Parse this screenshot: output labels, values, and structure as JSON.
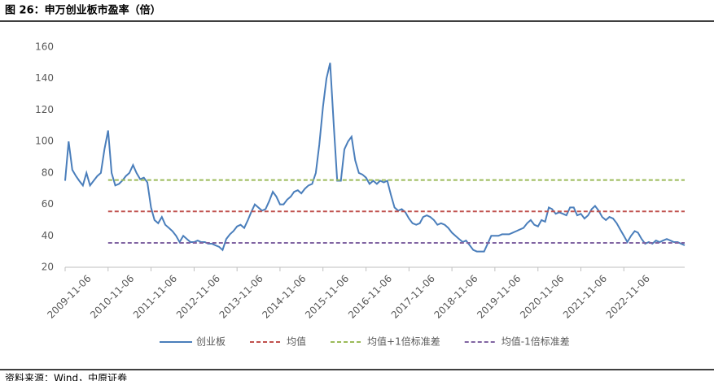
{
  "chart_data": {
    "type": "line",
    "title": "图 26：申万创业板市盈率（倍）",
    "source": "资料来源：Wind，中原证券",
    "xlim": [
      "2009-11-06",
      "2024-04-06"
    ],
    "xticks": [
      "2009-11-06",
      "2010-11-06",
      "2011-11-06",
      "2012-11-06",
      "2013-11-06",
      "2014-11-06",
      "2015-11-06",
      "2016-11-06",
      "2017-11-06",
      "2018-11-06",
      "2019-11-06",
      "2020-11-06",
      "2021-11-06",
      "2022-11-06"
    ],
    "ylim": [
      20,
      160
    ],
    "yticks": [
      20,
      40,
      60,
      80,
      100,
      120,
      140,
      160
    ],
    "grid": false,
    "legend": "bottom",
    "x": [
      "2009-11-06",
      "2009-12-06",
      "2010-01-06",
      "2010-02-06",
      "2010-03-06",
      "2010-04-06",
      "2010-05-06",
      "2010-06-06",
      "2010-07-06",
      "2010-08-06",
      "2010-09-06",
      "2010-10-06",
      "2010-11-06",
      "2010-12-06",
      "2011-01-06",
      "2011-02-06",
      "2011-03-06",
      "2011-04-06",
      "2011-05-06",
      "2011-06-06",
      "2011-07-06",
      "2011-08-06",
      "2011-09-06",
      "2011-10-06",
      "2011-11-06",
      "2011-12-06",
      "2012-01-06",
      "2012-02-06",
      "2012-03-06",
      "2012-04-06",
      "2012-05-06",
      "2012-06-06",
      "2012-07-06",
      "2012-08-06",
      "2012-09-06",
      "2012-10-06",
      "2012-11-06",
      "2012-12-06",
      "2013-01-06",
      "2013-02-06",
      "2013-03-06",
      "2013-04-06",
      "2013-05-06",
      "2013-06-06",
      "2013-07-06",
      "2013-08-06",
      "2013-09-06",
      "2013-10-06",
      "2013-11-06",
      "2013-12-06",
      "2014-01-06",
      "2014-02-06",
      "2014-03-06",
      "2014-04-06",
      "2014-05-06",
      "2014-06-06",
      "2014-07-06",
      "2014-08-06",
      "2014-09-06",
      "2014-10-06",
      "2014-11-06",
      "2014-12-06",
      "2015-01-06",
      "2015-02-06",
      "2015-03-06",
      "2015-04-06",
      "2015-05-06",
      "2015-06-06",
      "2015-07-06",
      "2015-08-06",
      "2015-09-06",
      "2015-10-06",
      "2015-11-06",
      "2015-12-06",
      "2016-01-06",
      "2016-02-06",
      "2016-03-06",
      "2016-04-06",
      "2016-05-06",
      "2016-06-06",
      "2016-07-06",
      "2016-08-06",
      "2016-09-06",
      "2016-10-06",
      "2016-11-06",
      "2016-12-06",
      "2017-01-06",
      "2017-02-06",
      "2017-03-06",
      "2017-04-06",
      "2017-05-06",
      "2017-06-06",
      "2017-07-06",
      "2017-08-06",
      "2017-09-06",
      "2017-10-06",
      "2017-11-06",
      "2017-12-06",
      "2018-01-06",
      "2018-02-06",
      "2018-03-06",
      "2018-04-06",
      "2018-05-06",
      "2018-06-06",
      "2018-07-06",
      "2018-08-06",
      "2018-09-06",
      "2018-10-06",
      "2018-11-06",
      "2018-12-06",
      "2019-01-06",
      "2019-02-06",
      "2019-03-06",
      "2019-04-06",
      "2019-05-06",
      "2019-06-06",
      "2019-07-06",
      "2019-08-06",
      "2019-09-06",
      "2019-10-06",
      "2019-11-06",
      "2019-12-06",
      "2020-01-06",
      "2020-02-06",
      "2020-03-06",
      "2020-04-06",
      "2020-05-06",
      "2020-06-06",
      "2020-07-06",
      "2020-08-06",
      "2020-09-06",
      "2020-10-06",
      "2020-11-06",
      "2020-12-06",
      "2021-01-06",
      "2021-02-06",
      "2021-03-06",
      "2021-04-06",
      "2021-05-06",
      "2021-06-06",
      "2021-07-06",
      "2021-08-06",
      "2021-09-06",
      "2021-10-06",
      "2021-11-06",
      "2021-12-06",
      "2022-01-06",
      "2022-02-06",
      "2022-03-06",
      "2022-04-06",
      "2022-05-06",
      "2022-06-06",
      "2022-07-06",
      "2022-08-06",
      "2022-09-06",
      "2022-10-06",
      "2022-11-06",
      "2022-12-06",
      "2023-01-06",
      "2023-02-06",
      "2023-03-06",
      "2023-04-06",
      "2023-05-06",
      "2023-06-06",
      "2023-07-06",
      "2023-08-06",
      "2023-09-06",
      "2023-10-06",
      "2023-11-06",
      "2023-12-06",
      "2024-01-06",
      "2024-02-06",
      "2024-03-06",
      "2024-04-06"
    ],
    "series": [
      {
        "name": "创业板",
        "color": "#4a7ebb",
        "dash": false,
        "values": [
          75,
          100,
          82,
          78,
          75,
          72,
          80,
          72,
          75,
          78,
          80,
          95,
          107,
          80,
          72,
          73,
          75,
          78,
          80,
          85,
          80,
          76,
          77,
          74,
          58,
          50,
          48,
          52,
          47,
          45,
          43,
          40,
          36,
          40,
          38,
          36,
          36,
          37,
          36,
          36,
          35,
          35,
          34,
          33,
          31,
          38,
          41,
          43,
          46,
          47,
          45,
          50,
          55,
          60,
          58,
          56,
          57,
          62,
          68,
          65,
          60,
          60,
          63,
          65,
          68,
          69,
          67,
          70,
          72,
          73,
          80,
          98,
          122,
          140,
          150,
          110,
          75,
          75,
          95,
          100,
          103,
          88,
          80,
          79,
          77,
          73,
          75,
          73,
          75,
          74,
          75,
          66,
          58,
          56,
          57,
          55,
          51,
          48,
          47,
          48,
          52,
          53,
          52,
          50,
          47,
          48,
          47,
          45,
          42,
          40,
          38,
          36,
          37,
          34,
          31,
          30,
          30,
          30,
          35,
          40,
          40,
          40,
          41,
          41,
          41,
          42,
          43,
          44,
          45,
          48,
          50,
          47,
          46,
          50,
          49,
          58,
          57,
          54,
          55,
          54,
          53,
          58,
          58,
          53,
          54,
          51,
          53,
          57,
          59,
          56,
          52,
          50,
          52,
          51,
          48,
          44,
          40,
          36,
          40,
          43,
          42,
          38,
          35,
          36,
          35,
          37,
          36,
          37,
          38,
          37,
          36,
          36,
          35,
          34
        ]
      },
      {
        "name": "均值",
        "color": "#c0504d",
        "dash": true,
        "x": [
          "2010-11-06",
          "2024-04-06"
        ],
        "values": [
          55.5,
          55.5
        ]
      },
      {
        "name": "均值+1倍标准差",
        "color": "#9bbb59",
        "dash": true,
        "x": [
          "2010-11-06",
          "2024-04-06"
        ],
        "values": [
          75.5,
          75.5
        ]
      },
      {
        "name": "均值-1倍标准差",
        "color": "#8064a2",
        "dash": true,
        "x": [
          "2010-11-06",
          "2024-04-06"
        ],
        "values": [
          35.5,
          35.5
        ]
      }
    ]
  }
}
